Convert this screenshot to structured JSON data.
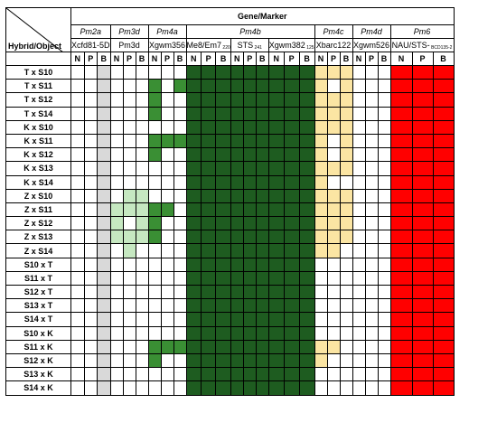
{
  "header": {
    "title": "Gene/Marker",
    "row_header": "Hybrid/Object"
  },
  "groups": [
    {
      "gene": "Pm2a",
      "markers": [
        "Xcfd81-5D"
      ],
      "span": 3
    },
    {
      "gene": "Pm3d",
      "markers": [
        "Pm3d"
      ],
      "span": 3
    },
    {
      "gene": "Pm4a",
      "markers": [
        "Xgwm356"
      ],
      "span": 3
    },
    {
      "gene": "Pm4b",
      "markers": [
        "Me8/Em7",
        "STS",
        "Xgwm382"
      ],
      "marker_subs": [
        "220",
        "241",
        "125"
      ],
      "span": 9
    },
    {
      "gene": "Pm4c",
      "markers": [
        "Xbarc122"
      ],
      "span": 3
    },
    {
      "gene": "Pm4d",
      "markers": [
        "Xgwm526"
      ],
      "span": 3
    },
    {
      "gene": "Pm6",
      "markers": [
        "NAU/STS-"
      ],
      "marker_subs": [
        "BCD135-2"
      ],
      "span": 3
    }
  ],
  "npb": [
    "N",
    "P",
    "B"
  ],
  "colors": {
    "grey": "#d9d9d9",
    "lightgreen": "#c6e8c1",
    "green": "#3a8f34",
    "darkgreen": "#1e5c20",
    "yellow": "#fbe5a3",
    "red": "#ff0000",
    "white": "#ffffff"
  },
  "rows": [
    "T x S10",
    "T x S11",
    "T x S12",
    "T x S14",
    "K x S10",
    "K x S11",
    "K x S12",
    "K x S13",
    "K x S14",
    "Z x S10",
    "Z x S11",
    "Z x S12",
    "Z x S13",
    "Z x S14",
    "S10 x T",
    "S11 x T",
    "S12 x T",
    "S13 x T",
    "S14 x T",
    "S10 x K",
    "S11 x K",
    "S12 x K",
    "S13 x K",
    "S14 x K"
  ],
  "pm3d_pattern": [
    [
      0,
      0,
      0
    ],
    [
      0,
      0,
      0
    ],
    [
      0,
      0,
      0
    ],
    [
      0,
      0,
      0
    ],
    [
      0,
      0,
      0
    ],
    [
      0,
      0,
      0
    ],
    [
      0,
      0,
      0
    ],
    [
      0,
      0,
      0
    ],
    [
      0,
      0,
      0
    ],
    [
      0,
      1,
      1
    ],
    [
      1,
      1,
      1
    ],
    [
      1,
      0,
      1
    ],
    [
      1,
      1,
      1
    ],
    [
      0,
      1,
      0
    ],
    [
      0,
      0,
      0
    ],
    [
      0,
      0,
      0
    ],
    [
      0,
      0,
      0
    ],
    [
      0,
      0,
      0
    ],
    [
      0,
      0,
      0
    ],
    [
      0,
      0,
      0
    ],
    [
      0,
      0,
      0
    ],
    [
      0,
      0,
      0
    ],
    [
      0,
      0,
      0
    ],
    [
      0,
      0,
      0
    ]
  ],
  "pm4a_pattern": [
    [
      0,
      0,
      0
    ],
    [
      1,
      0,
      1
    ],
    [
      1,
      0,
      0
    ],
    [
      1,
      0,
      0
    ],
    [
      0,
      0,
      0
    ],
    [
      1,
      1,
      1
    ],
    [
      1,
      0,
      0
    ],
    [
      0,
      0,
      0
    ],
    [
      0,
      0,
      0
    ],
    [
      0,
      0,
      0
    ],
    [
      1,
      1,
      0
    ],
    [
      1,
      0,
      0
    ],
    [
      1,
      0,
      0
    ],
    [
      0,
      0,
      0
    ],
    [
      0,
      0,
      0
    ],
    [
      0,
      0,
      0
    ],
    [
      0,
      0,
      0
    ],
    [
      0,
      0,
      0
    ],
    [
      0,
      0,
      0
    ],
    [
      0,
      0,
      0
    ],
    [
      1,
      1,
      1
    ],
    [
      1,
      0,
      0
    ],
    [
      0,
      0,
      0
    ],
    [
      0,
      0,
      0
    ]
  ],
  "pm4c_pattern": [
    [
      1,
      1,
      1
    ],
    [
      1,
      0,
      1
    ],
    [
      1,
      1,
      1
    ],
    [
      1,
      1,
      1
    ],
    [
      1,
      1,
      1
    ],
    [
      1,
      0,
      1
    ],
    [
      1,
      0,
      1
    ],
    [
      1,
      1,
      1
    ],
    [
      1,
      0,
      0
    ],
    [
      1,
      1,
      1
    ],
    [
      1,
      1,
      1
    ],
    [
      1,
      1,
      1
    ],
    [
      1,
      1,
      1
    ],
    [
      1,
      1,
      0
    ],
    [
      0,
      0,
      0
    ],
    [
      0,
      0,
      0
    ],
    [
      0,
      0,
      0
    ],
    [
      0,
      0,
      0
    ],
    [
      0,
      0,
      0
    ],
    [
      0,
      0,
      0
    ],
    [
      1,
      1,
      0
    ],
    [
      1,
      0,
      0
    ],
    [
      0,
      0,
      0
    ],
    [
      0,
      0,
      0
    ]
  ]
}
